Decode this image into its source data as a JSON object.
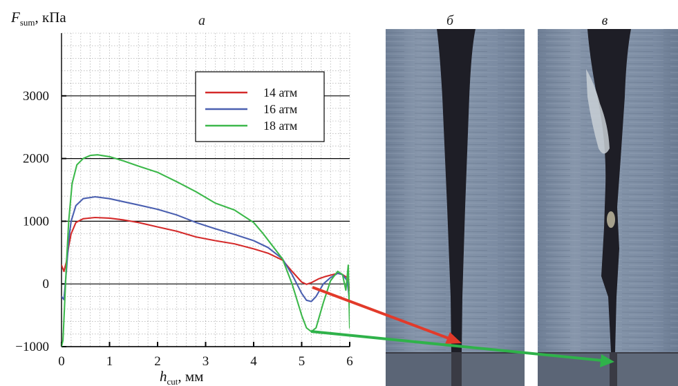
{
  "panels": {
    "a": "а",
    "b": "б",
    "c": "в"
  },
  "colors": {
    "red": "#d42a2a",
    "blue": "#4a5fb0",
    "green": "#3cb84a",
    "photo_metal": "#7f8fa3",
    "photo_dark": "#1e1e26"
  },
  "chart_data": {
    "type": "line",
    "title": "",
    "xlabel_main": "h",
    "xlabel_sub": "cut",
    "xlabel_unit": ", мм",
    "ylabel_main": "F",
    "ylabel_sub": "sum",
    "ylabel_unit": ", кПа",
    "xlim": [
      0,
      6
    ],
    "ylim": [
      -1000,
      4000
    ],
    "x_ticks": [
      0,
      1,
      2,
      3,
      4,
      5,
      6
    ],
    "y_ticks": [
      -1000,
      0,
      1000,
      2000,
      3000
    ],
    "y_tick_labels": [
      "−1000",
      "0",
      "1000",
      "2000",
      "3000"
    ],
    "grid": true,
    "legend_position": "upper-right",
    "series": [
      {
        "name": "14 атм",
        "color": "#d42a2a",
        "x": [
          0.0,
          0.05,
          0.1,
          0.15,
          0.2,
          0.3,
          0.45,
          0.7,
          1.0,
          1.3,
          1.6,
          2.0,
          2.4,
          2.8,
          3.2,
          3.6,
          4.0,
          4.3,
          4.6,
          4.8,
          5.0,
          5.1,
          5.2,
          5.35,
          5.5,
          5.65,
          5.75,
          5.85,
          5.95,
          6.0
        ],
        "y": [
          300,
          200,
          350,
          600,
          800,
          980,
          1040,
          1060,
          1050,
          1020,
          980,
          910,
          840,
          750,
          690,
          640,
          560,
          490,
          380,
          200,
          30,
          -5,
          20,
          80,
          120,
          150,
          170,
          150,
          100,
          -100
        ]
      },
      {
        "name": "16 атм",
        "color": "#4a5fb0",
        "x": [
          0.0,
          0.05,
          0.1,
          0.15,
          0.2,
          0.3,
          0.45,
          0.7,
          1.0,
          1.3,
          1.6,
          2.0,
          2.4,
          2.8,
          3.2,
          3.6,
          4.0,
          4.3,
          4.6,
          4.8,
          5.0,
          5.1,
          5.2,
          5.3,
          5.45,
          5.6,
          5.75,
          5.85,
          5.95,
          6.0
        ],
        "y": [
          -200,
          -250,
          200,
          700,
          1000,
          1250,
          1360,
          1390,
          1360,
          1310,
          1260,
          1190,
          1100,
          980,
          880,
          790,
          690,
          580,
          400,
          150,
          -150,
          -260,
          -280,
          -200,
          0,
          100,
          170,
          150,
          50,
          -300
        ]
      },
      {
        "name": "18 атм",
        "color": "#3cb84a",
        "x": [
          0.0,
          0.03,
          0.06,
          0.1,
          0.15,
          0.22,
          0.32,
          0.45,
          0.6,
          0.75,
          1.0,
          1.3,
          1.6,
          2.0,
          2.4,
          2.8,
          3.2,
          3.6,
          4.0,
          4.2,
          4.4,
          4.6,
          4.8,
          5.0,
          5.1,
          5.2,
          5.3,
          5.45,
          5.6,
          5.75,
          5.85,
          5.92,
          5.97,
          6.0
        ],
        "y": [
          -1000,
          -900,
          -400,
          300,
          1000,
          1600,
          1900,
          2000,
          2050,
          2060,
          2030,
          1960,
          1880,
          1780,
          1630,
          1470,
          1290,
          1180,
          980,
          800,
          600,
          400,
          0,
          -500,
          -700,
          -760,
          -700,
          -300,
          50,
          200,
          150,
          -100,
          300,
          -700
        ]
      }
    ]
  }
}
